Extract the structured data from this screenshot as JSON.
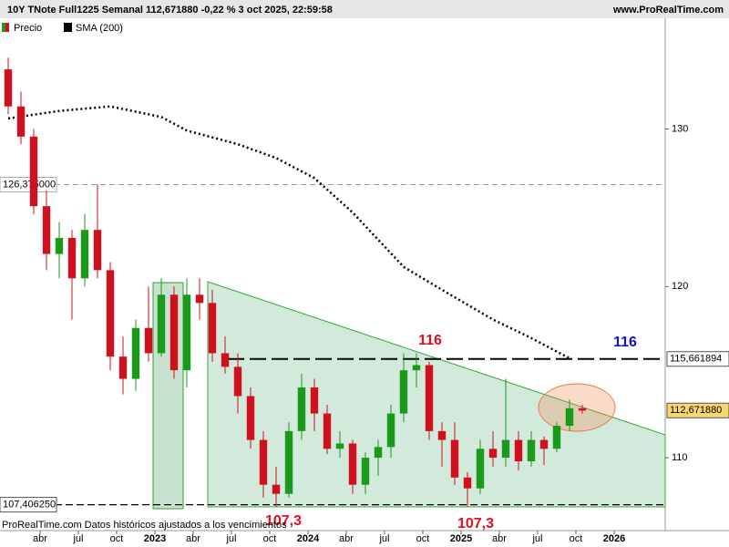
{
  "header": {
    "title": "10Y TNote Full1225 Semanal 112,671880 -0,22 % 3 oct 2025, 22:59:58",
    "site": "www.ProRealTime.com"
  },
  "footer": "ProRealTime.com  Datos históricos ajustados a los vencimientos",
  "annotations": [
    "116",
    "116",
    "107,3",
    "107,3"
  ],
  "chart_data": {
    "type": "candlestick",
    "log_scale": true,
    "up_color": "#1a9a1a",
    "down_color": "#d0101e",
    "legend": [
      "Precio",
      "SMA (200)"
    ],
    "xlim": [
      "2022-01",
      "2026-05"
    ],
    "xticks": [
      {
        "value": "2022-04",
        "label": "abr"
      },
      {
        "value": "2022-07",
        "label": "jul"
      },
      {
        "value": "2022-10",
        "label": "oct"
      },
      {
        "value": "2023-01",
        "label": "2023"
      },
      {
        "value": "2023-04",
        "label": "abr"
      },
      {
        "value": "2023-07",
        "label": "jul"
      },
      {
        "value": "2023-10",
        "label": "oct"
      },
      {
        "value": "2024-01",
        "label": "2024"
      },
      {
        "value": "2024-04",
        "label": "abr"
      },
      {
        "value": "2024-07",
        "label": "jul"
      },
      {
        "value": "2024-10",
        "label": "oct"
      },
      {
        "value": "2025-01",
        "label": "2025"
      },
      {
        "value": "2025-04",
        "label": "abr"
      },
      {
        "value": "2025-07",
        "label": "jul"
      },
      {
        "value": "2025-10",
        "label": "oct"
      },
      {
        "value": "2026-01",
        "label": "2026"
      }
    ],
    "ylim": [
      106.1,
      137.4
    ],
    "yticks": [
      110,
      120,
      130
    ],
    "candles": {
      "x": [
        "2022-01",
        "2022-02",
        "2022-03",
        "2022-04",
        "2022-05",
        "2022-06",
        "2022-07",
        "2022-08",
        "2022-09",
        "2022-10",
        "2022-11",
        "2022-12",
        "2023-01",
        "2023-02",
        "2023-03",
        "2023-04",
        "2023-05",
        "2023-06",
        "2023-07",
        "2023-08",
        "2023-09",
        "2023-10",
        "2023-11",
        "2023-12",
        "2024-01",
        "2024-02",
        "2024-03",
        "2024-04",
        "2024-05",
        "2024-06",
        "2024-07",
        "2024-08",
        "2024-09",
        "2024-10",
        "2024-11",
        "2024-12",
        "2025-01",
        "2025-02",
        "2025-03",
        "2025-04",
        "2025-05",
        "2025-06",
        "2025-07",
        "2025-08",
        "2025-09",
        "2025-10"
      ],
      "open": [
        134.0,
        131.5,
        129.5,
        125.0,
        122.0,
        123.0,
        120.5,
        123.5,
        121.0,
        115.8,
        114.5,
        117.5,
        116.0,
        119.5,
        115.0,
        119.5,
        119.0,
        116.0,
        115.2,
        113.5,
        111.0,
        108.5,
        108.0,
        111.5,
        114.0,
        112.5,
        110.5,
        110.8,
        108.5,
        110.0,
        110.6,
        112.5,
        115.0,
        115.3,
        111.5,
        111.0,
        108.9,
        108.3,
        110.5,
        110.0,
        111.0,
        109.8,
        111.0,
        110.5,
        111.8,
        112.8
      ],
      "high": [
        134.8,
        132.5,
        130.0,
        126.0,
        124.0,
        123.5,
        124.5,
        126.4,
        121.5,
        117.0,
        118.0,
        120.0,
        120.5,
        120.0,
        120.5,
        120.5,
        119.8,
        117.0,
        116.0,
        114.0,
        111.5,
        109.5,
        112.0,
        114.8,
        114.5,
        113.0,
        111.5,
        111.0,
        110.3,
        111.0,
        113.0,
        116.0,
        116.0,
        115.5,
        112.0,
        112.0,
        109.2,
        111.0,
        111.5,
        114.5,
        111.5,
        111.5,
        111.2,
        112.0,
        113.3,
        113.0
      ],
      "low": [
        131.0,
        129.0,
        124.5,
        121.0,
        120.5,
        118.0,
        120.0,
        120.5,
        115.0,
        113.6,
        113.8,
        115.5,
        115.8,
        114.5,
        114.0,
        118.0,
        115.5,
        114.8,
        112.5,
        110.5,
        107.8,
        107.3,
        107.8,
        111.0,
        111.5,
        110.2,
        110.0,
        108.0,
        108.0,
        109.0,
        110.0,
        112.0,
        114.0,
        111.0,
        109.5,
        108.5,
        107.3,
        108.0,
        109.5,
        109.5,
        109.3,
        109.5,
        109.6,
        110.3,
        111.5,
        112.5
      ],
      "close": [
        131.5,
        129.5,
        125.0,
        122.0,
        123.0,
        120.5,
        123.5,
        121.0,
        115.8,
        114.5,
        117.5,
        116.0,
        119.5,
        115.0,
        119.5,
        119.0,
        116.0,
        115.2,
        113.5,
        111.0,
        108.5,
        108.0,
        111.5,
        114.0,
        112.5,
        110.5,
        110.8,
        108.5,
        110.0,
        110.6,
        112.5,
        115.0,
        115.3,
        111.5,
        111.0,
        108.9,
        108.3,
        110.5,
        110.0,
        111.0,
        109.8,
        111.0,
        110.5,
        111.8,
        112.8,
        112.67
      ]
    },
    "sma": {
      "name": "SMA (200)",
      "color": "#000000",
      "x": [
        "2022-01",
        "2022-05",
        "2022-09",
        "2023-01",
        "2023-03",
        "2023-07",
        "2023-10",
        "2024-01",
        "2024-04",
        "2024-08",
        "2024-11",
        "2025-03",
        "2025-06",
        "2025-09"
      ],
      "values": [
        130.7,
        131.2,
        131.5,
        130.8,
        129.9,
        129.0,
        128.1,
        126.8,
        124.6,
        121.2,
        119.8,
        118.0,
        116.9,
        115.7
      ]
    },
    "levels": [
      {
        "value": 126.375,
        "label": "126,375000",
        "style": "gray",
        "side": "left"
      },
      {
        "value": 107.40625,
        "label": "107,406250",
        "style": "dashed",
        "side": "left"
      },
      {
        "value": 115.661894,
        "label": "115,661894",
        "style": "long-dashed",
        "side": "right"
      },
      {
        "value": 112.67188,
        "label": "112,671880",
        "style": "current",
        "side": "right"
      }
    ]
  }
}
